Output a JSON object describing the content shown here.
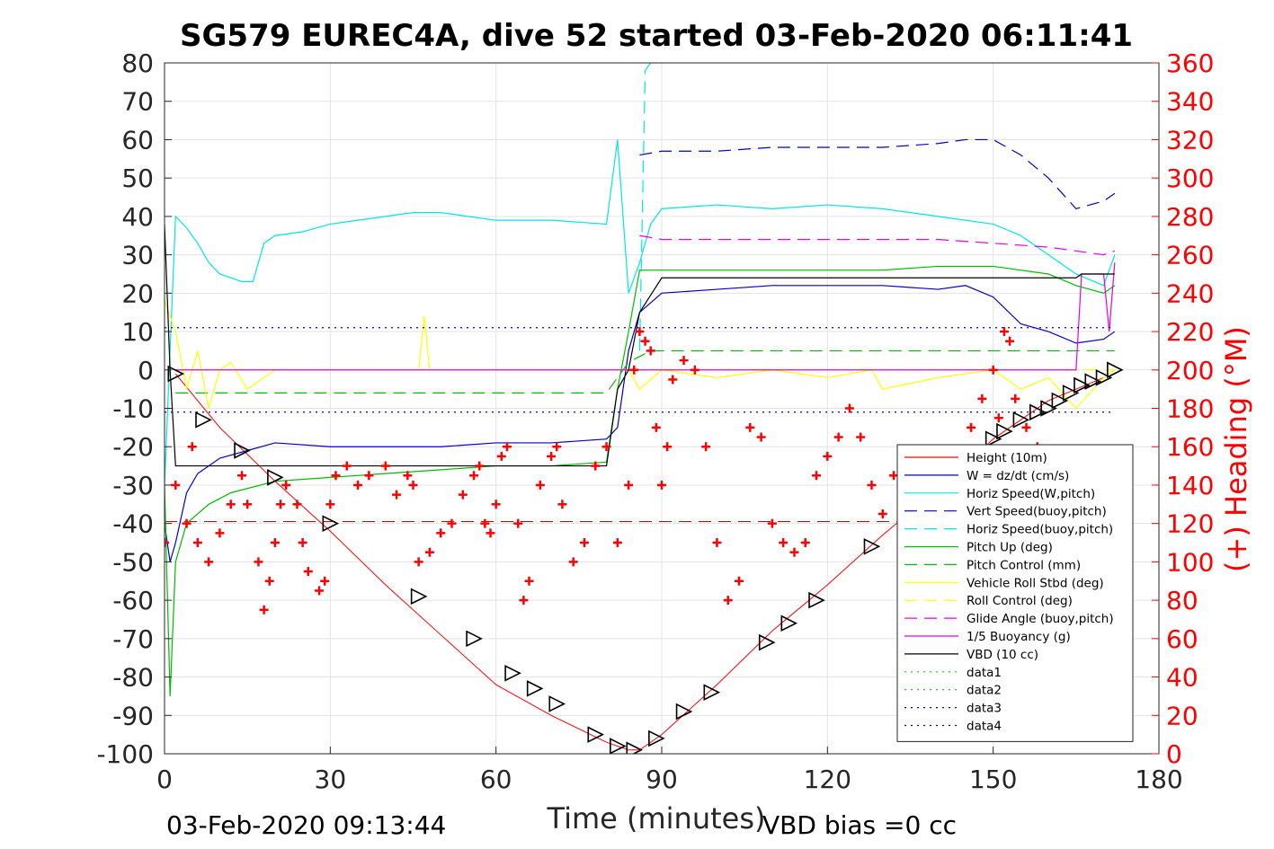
{
  "chart_data": {
    "type": "line",
    "title": "SG579 EUREC4A, dive 52 started 03-Feb-2020 06:11:41",
    "xlabel": "Time (minutes)",
    "ylabel": "",
    "y2label": "(+) Heading (°M)",
    "xlim": [
      0,
      180
    ],
    "ylim": [
      -100,
      80
    ],
    "y2lim": [
      0,
      360
    ],
    "xticks": [
      "0",
      "30",
      "60",
      "90",
      "120",
      "150",
      "180"
    ],
    "yticks": [
      "80",
      "70",
      "60",
      "50",
      "40",
      "30",
      "20",
      "10",
      "0",
      "-10",
      "-20",
      "-30",
      "-40",
      "-50",
      "-60",
      "-70",
      "-80",
      "-90",
      "-100"
    ],
    "y2ticks": [
      "360",
      "340",
      "320",
      "300",
      "280",
      "260",
      "240",
      "220",
      "200",
      "180",
      "160",
      "140",
      "120",
      "100",
      "80",
      "60",
      "40",
      "20",
      "0"
    ],
    "grid": true,
    "legend_position": "lower-right",
    "footer_left": "03-Feb-2020 09:13:44",
    "footer_right": "VBD bias =0 cc",
    "colors": {
      "height": "#ff0000",
      "w": "#0000cc",
      "horiz": "#00e5e5",
      "pitch": "#00bb00",
      "roll": "#ffff00",
      "glide": "#e600e6",
      "vbd": "#000000",
      "heading": "#ff0000"
    },
    "series": [
      {
        "name": "Height (10m)",
        "key": "height",
        "style": "solid",
        "color": "#ff0000",
        "x": [
          2,
          10,
          20,
          30,
          40,
          50,
          60,
          70,
          80,
          84,
          86,
          90,
          100,
          110,
          120,
          130,
          140,
          150,
          160,
          170,
          172
        ],
        "y": [
          -1,
          -15,
          -29,
          -42,
          -56,
          -69,
          -82,
          -90,
          -97,
          -99,
          -99,
          -95,
          -82,
          -68,
          -56,
          -43,
          -31,
          -18,
          -8,
          -2,
          0
        ]
      },
      {
        "name": "W = dz/dt (cm/s)",
        "key": "w",
        "style": "solid",
        "color": "#0000cc",
        "x": [
          0,
          1,
          2,
          4,
          6,
          8,
          10,
          15,
          20,
          30,
          40,
          50,
          60,
          70,
          80,
          82,
          84,
          86,
          90,
          100,
          110,
          120,
          130,
          140,
          145,
          150,
          155,
          160,
          165,
          170,
          172
        ],
        "y": [
          -40,
          -50,
          -45,
          -32,
          -27,
          -25,
          -23,
          -21,
          -19,
          -20,
          -20,
          -20,
          -19,
          -19,
          -18,
          -15,
          5,
          15,
          20,
          21,
          22,
          22,
          22,
          21,
          22,
          19,
          12,
          10,
          7,
          8,
          10
        ]
      },
      {
        "name": "Horiz Speed(W,pitch)",
        "key": "horiz",
        "style": "solid",
        "color": "#00e5e5",
        "x": [
          0,
          2,
          4,
          6,
          8,
          10,
          12,
          14,
          16,
          18,
          20,
          25,
          30,
          40,
          45,
          50,
          60,
          70,
          80,
          82,
          84,
          86,
          88,
          90,
          100,
          110,
          120,
          130,
          140,
          150,
          155,
          160,
          165,
          170,
          172
        ],
        "y": [
          -30,
          40,
          37,
          33,
          28,
          25,
          24,
          23,
          23,
          33,
          35,
          36,
          38,
          40,
          41,
          41,
          39,
          39,
          38,
          60,
          20,
          28,
          38,
          42,
          43,
          42,
          43,
          42,
          40,
          38,
          35,
          30,
          25,
          22,
          30
        ]
      },
      {
        "name": "Vert Speed(buoy,pitch)",
        "key": "w",
        "style": "dash",
        "color": "#0000cc",
        "x": [
          86,
          90,
          100,
          110,
          120,
          130,
          140,
          145,
          150,
          155,
          160,
          165,
          170,
          172
        ],
        "y": [
          56,
          57,
          57,
          58,
          58,
          58,
          59,
          60,
          60,
          56,
          50,
          42,
          44,
          46
        ]
      },
      {
        "name": "Horiz Speed(buoy,pitch)",
        "key": "horiz",
        "style": "dash",
        "color": "#00e5e5",
        "x": [
          86,
          87,
          88,
          89
        ],
        "y": [
          5,
          78,
          80,
          80
        ]
      },
      {
        "name": "Pitch Up (deg)",
        "key": "pitch",
        "style": "solid",
        "color": "#00bb00",
        "x": [
          0,
          1,
          2,
          4,
          8,
          12,
          20,
          30,
          40,
          50,
          60,
          70,
          80,
          82,
          84,
          86,
          90,
          100,
          110,
          120,
          130,
          140,
          150,
          155,
          160,
          165,
          170,
          172
        ],
        "y": [
          -30,
          -85,
          -50,
          -40,
          -35,
          -32,
          -29,
          -28,
          -27,
          -26,
          -25,
          -25,
          -24,
          -5,
          10,
          26,
          26,
          26,
          26,
          26,
          26,
          27,
          27,
          26,
          25,
          22,
          20,
          22
        ]
      },
      {
        "name": "Pitch Control (mm)",
        "key": "pitch",
        "style": "dash",
        "color": "#00bb00",
        "x": [
          2,
          20,
          40,
          60,
          80,
          84,
          88,
          100,
          120,
          140,
          160,
          172
        ],
        "y": [
          -6,
          -6,
          -6,
          -6,
          -6,
          2,
          5,
          5,
          5,
          5,
          5,
          5
        ]
      },
      {
        "name": "Vehicle Roll Stbd (deg)",
        "key": "roll",
        "style": "solid",
        "color": "#ffff00",
        "x": [
          0,
          2,
          4,
          6,
          8,
          10,
          12,
          15,
          20,
          25,
          30,
          40,
          46,
          47,
          48,
          50,
          60,
          70,
          80,
          84,
          86,
          90,
          100,
          110,
          120,
          128,
          130,
          140,
          150,
          155,
          160,
          165,
          170,
          172
        ],
        "y": [
          18,
          10,
          -5,
          5,
          -10,
          0,
          2,
          -5,
          0,
          0,
          0,
          0,
          0,
          14,
          0,
          0,
          0,
          0,
          0,
          0,
          -5,
          0,
          -2,
          0,
          -2,
          0,
          -5,
          -2,
          0,
          -5,
          -2,
          -10,
          -2,
          0
        ]
      },
      {
        "name": "Roll Control (deg)",
        "key": "roll",
        "style": "dash",
        "color": "#ffff00",
        "x": [
          2,
          40,
          80,
          120,
          160,
          172
        ],
        "y": [
          0,
          0,
          0,
          0,
          0,
          0
        ]
      },
      {
        "name": "Glide Angle (buoy,pitch)",
        "key": "glide",
        "style": "dash",
        "color": "#e600e6",
        "x": [
          86,
          90,
          100,
          120,
          140,
          150,
          160,
          165,
          170,
          172
        ],
        "y": [
          35,
          34,
          34,
          34,
          34,
          33,
          32,
          31,
          30,
          31
        ]
      },
      {
        "name": "1/5 Buoyancy (g)",
        "key": "glide",
        "style": "solid",
        "color": "#e600e6",
        "x": [
          2,
          20,
          40,
          60,
          80,
          84,
          86,
          100,
          140,
          165,
          166,
          170,
          171,
          172
        ],
        "y": [
          0,
          0,
          0,
          0,
          0,
          0,
          0,
          0,
          0,
          0,
          25,
          25,
          10,
          28
        ]
      },
      {
        "name": "VBD (10 cc)",
        "key": "vbd",
        "style": "solid",
        "color": "#000000",
        "x": [
          0,
          1,
          2,
          20,
          40,
          60,
          80,
          82,
          84,
          86,
          90,
          100,
          120,
          140,
          160,
          165,
          166,
          172
        ],
        "y": [
          38,
          0,
          -25,
          -25,
          -25,
          -25,
          -25,
          -5,
          0,
          15,
          24,
          24,
          24,
          24,
          24,
          24,
          25,
          25
        ]
      },
      {
        "name": "data1",
        "key": "data1",
        "style": "dot",
        "color": "#00dd00",
        "x": [],
        "y": []
      },
      {
        "name": "data2",
        "key": "data2",
        "style": "dot",
        "color": "#00bb00",
        "x": [],
        "y": []
      },
      {
        "name": "data3",
        "key": "data3",
        "style": "dot",
        "color": "#0000aa",
        "x": [
          0,
          172
        ],
        "y": [
          11,
          11
        ]
      },
      {
        "name": "data4",
        "key": "data4",
        "style": "dot",
        "color": "#0000aa",
        "x": [
          0,
          172
        ],
        "y": [
          -11,
          -11
        ]
      }
    ],
    "reference_lines": [
      {
        "key": "height_ref",
        "style": "dash",
        "color": "#cc0000",
        "x": [
          0,
          172
        ],
        "y": [
          -39.5,
          -39.5
        ]
      }
    ],
    "heading_series": {
      "name": "(+) Heading (°M)",
      "marker": "+",
      "color": "#ff0000",
      "x": [
        0,
        2,
        4,
        5,
        6,
        8,
        10,
        12,
        14,
        15,
        17,
        18,
        19,
        20,
        21,
        22,
        24,
        25,
        26,
        28,
        29,
        30,
        31,
        33,
        35,
        37,
        40,
        42,
        44,
        45,
        46,
        48,
        50,
        52,
        54,
        56,
        57,
        58,
        59,
        60,
        61,
        62,
        64,
        65,
        66,
        68,
        70,
        71,
        72,
        74,
        76,
        78,
        80,
        82,
        84,
        85,
        86,
        87,
        88,
        89,
        90,
        91,
        92,
        94,
        96,
        98,
        100,
        102,
        104,
        106,
        108,
        110,
        112,
        114,
        116,
        118,
        120,
        122,
        124,
        126,
        128,
        130,
        132,
        134,
        136,
        138,
        140,
        142,
        144,
        146,
        148,
        150,
        151,
        152,
        153,
        154,
        156,
        158,
        160,
        162,
        164,
        166,
        168,
        170,
        172
      ],
      "y": [
        110,
        140,
        120,
        160,
        110,
        100,
        115,
        130,
        145,
        130,
        100,
        75,
        90,
        110,
        130,
        140,
        130,
        110,
        95,
        85,
        90,
        130,
        145,
        150,
        140,
        145,
        150,
        135,
        145,
        140,
        100,
        105,
        115,
        120,
        135,
        145,
        150,
        120,
        115,
        130,
        155,
        160,
        120,
        80,
        90,
        140,
        155,
        160,
        130,
        100,
        110,
        150,
        160,
        110,
        140,
        200,
        220,
        215,
        210,
        170,
        140,
        160,
        195,
        205,
        200,
        160,
        110,
        80,
        90,
        170,
        165,
        120,
        110,
        105,
        110,
        145,
        155,
        165,
        180,
        165,
        140,
        125,
        145,
        155,
        150,
        140,
        125,
        140,
        150,
        170,
        185,
        200,
        175,
        220,
        215,
        185,
        170,
        160,
        155,
        150,
        140,
        130,
        125,
        120,
        115
      ]
    },
    "depth_markers": {
      "x": [
        2,
        7,
        14,
        20,
        30,
        46,
        56,
        63,
        67,
        71,
        78,
        82,
        85,
        89,
        94,
        99,
        109,
        113,
        118,
        128,
        150,
        152,
        155,
        158,
        160,
        162,
        164,
        166,
        168,
        170,
        172
      ],
      "y": [
        -1,
        -13,
        -21,
        -28,
        -40,
        -59,
        -70,
        -79,
        -83,
        -87,
        -95,
        -98,
        -99,
        -96,
        -89,
        -84,
        -71,
        -66,
        -60,
        -46,
        -18,
        -16,
        -13,
        -11,
        -10,
        -8,
        -6,
        -4,
        -3,
        -2,
        0
      ]
    }
  }
}
